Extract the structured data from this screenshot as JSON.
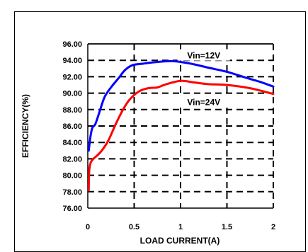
{
  "chart_data": {
    "type": "line",
    "title": "",
    "xlabel": "LOAD CURRENT(A)",
    "ylabel": "EFFICIENCY(%)",
    "xlim": [
      0,
      2
    ],
    "ylim": [
      76,
      96
    ],
    "x_ticks": [
      "0",
      "0.5",
      "1",
      "1.5",
      "2"
    ],
    "y_ticks": [
      "96.00",
      "94.00",
      "92.00",
      "90.00",
      "88.00",
      "86.00",
      "84.00",
      "82.00",
      "80.00",
      "78.00",
      "76.00"
    ],
    "grid": true,
    "series": [
      {
        "name": "Vin=12V",
        "color": "#0000ff",
        "points": [
          [
            0.01,
            83.0
          ],
          [
            0.03,
            84.8
          ],
          [
            0.05,
            85.8
          ],
          [
            0.08,
            86.2
          ],
          [
            0.12,
            87.5
          ],
          [
            0.18,
            89.5
          ],
          [
            0.25,
            90.7
          ],
          [
            0.33,
            91.8
          ],
          [
            0.4,
            92.8
          ],
          [
            0.48,
            93.4
          ],
          [
            0.6,
            93.6
          ],
          [
            0.75,
            93.8
          ],
          [
            0.9,
            93.9
          ],
          [
            1.0,
            93.8
          ],
          [
            1.15,
            93.5
          ],
          [
            1.3,
            93.1
          ],
          [
            1.5,
            92.6
          ],
          [
            1.7,
            91.9
          ],
          [
            1.85,
            91.4
          ],
          [
            2.0,
            90.8
          ]
        ]
      },
      {
        "name": "Vin=24V",
        "color": "#ff0000",
        "points": [
          [
            0.01,
            78.2
          ],
          [
            0.015,
            80.5
          ],
          [
            0.03,
            81.5
          ],
          [
            0.06,
            82.0
          ],
          [
            0.1,
            82.4
          ],
          [
            0.15,
            83.0
          ],
          [
            0.22,
            84.2
          ],
          [
            0.3,
            86.2
          ],
          [
            0.38,
            88.0
          ],
          [
            0.45,
            89.2
          ],
          [
            0.55,
            90.2
          ],
          [
            0.65,
            90.6
          ],
          [
            0.75,
            90.7
          ],
          [
            0.85,
            91.1
          ],
          [
            1.0,
            91.5
          ],
          [
            1.15,
            91.3
          ],
          [
            1.3,
            91.1
          ],
          [
            1.5,
            91.0
          ],
          [
            1.75,
            90.6
          ],
          [
            2.0,
            89.9
          ]
        ]
      }
    ],
    "annotations": [
      "Vin=12V",
      "Vin=24V"
    ]
  }
}
